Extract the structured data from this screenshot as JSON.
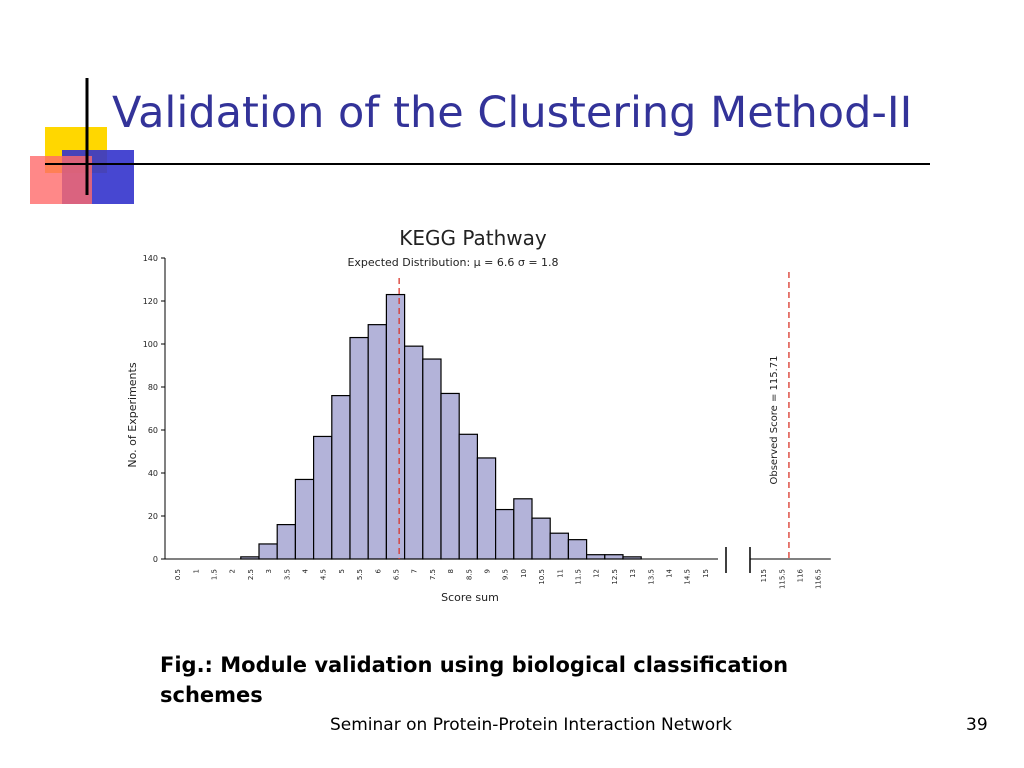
{
  "slide": {
    "title": "Validation of the Clustering Method-II",
    "caption": "Fig.: Module validation using biological classification schemes",
    "footer": "Seminar on Protein-Protein Interaction Network",
    "page_number": "39"
  },
  "colors": {
    "title": "#333399",
    "bar_fill": "#b3b3d9",
    "dashed_line": "#d9362b",
    "deco_yellow": "#ffd700",
    "deco_blue": "#3333cc",
    "deco_red": "#ff4d4d"
  },
  "chart_data": {
    "type": "bar",
    "title": "KEGG Pathway",
    "subtitle": "Expected Distribution:   μ = 6.6  σ = 1.8",
    "xlabel": "Score sum",
    "ylabel": "No. of Experiments",
    "ylim": [
      0,
      140
    ],
    "yticks": [
      "0",
      "20",
      "40",
      "60",
      "80",
      "100",
      "120",
      "140"
    ],
    "categories": [
      "0.5",
      "1",
      "1.5",
      "2",
      "2.5",
      "3",
      "3.5",
      "4",
      "4.5",
      "5",
      "5.5",
      "6",
      "6.5",
      "7",
      "7.5",
      "8",
      "8.5",
      "9",
      "9.5",
      "10",
      "10.5",
      "11",
      "11.5",
      "12",
      "12.5",
      "13",
      "13.5",
      "14",
      "14.5",
      "15"
    ],
    "values": [
      0,
      0,
      0,
      0,
      1,
      7,
      16,
      37,
      57,
      76,
      103,
      109,
      123,
      99,
      93,
      77,
      58,
      47,
      23,
      28,
      19,
      12,
      9,
      2,
      2,
      1,
      0,
      0,
      0,
      0
    ],
    "broken_axis_categories": [
      "115",
      "115.5",
      "116",
      "116.5"
    ],
    "expected_mean": 6.6,
    "observed_score_label": "Observed Score = 115.71",
    "observed_score": 115.71,
    "grid": false
  }
}
